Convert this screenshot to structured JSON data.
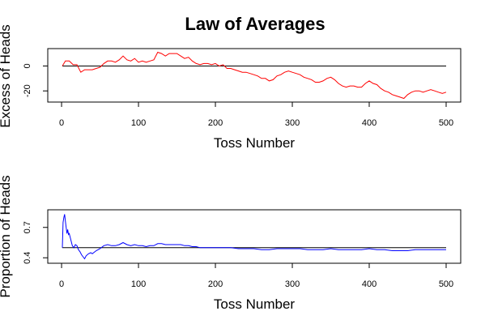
{
  "title": "Law of Averages",
  "chart_data": [
    {
      "type": "line",
      "ylabel": "Excess of Heads",
      "xlabel": "Toss Number",
      "xlim": [
        1,
        500
      ],
      "ylim": [
        -27,
        12
      ],
      "xticks": [
        0,
        100,
        200,
        300,
        400,
        500
      ],
      "yticks": [
        -20,
        0
      ],
      "reference_line": 0,
      "series": [
        {
          "color": "#ff0000",
          "points": [
            [
              1,
              0
            ],
            [
              5,
              4
            ],
            [
              10,
              4
            ],
            [
              15,
              1
            ],
            [
              20,
              1
            ],
            [
              25,
              -5
            ],
            [
              30,
              -3
            ],
            [
              35,
              -3
            ],
            [
              40,
              -3
            ],
            [
              45,
              -2
            ],
            [
              50,
              -1
            ],
            [
              55,
              2
            ],
            [
              60,
              4
            ],
            [
              65,
              4
            ],
            [
              70,
              3
            ],
            [
              75,
              5
            ],
            [
              80,
              8
            ],
            [
              85,
              5
            ],
            [
              90,
              4
            ],
            [
              95,
              6
            ],
            [
              100,
              3
            ],
            [
              105,
              4
            ],
            [
              110,
              3
            ],
            [
              115,
              4
            ],
            [
              120,
              5
            ],
            [
              125,
              11
            ],
            [
              130,
              10
            ],
            [
              135,
              8
            ],
            [
              140,
              10
            ],
            [
              145,
              10
            ],
            [
              150,
              10
            ],
            [
              155,
              8
            ],
            [
              160,
              6
            ],
            [
              165,
              7
            ],
            [
              170,
              4
            ],
            [
              175,
              2
            ],
            [
              180,
              1
            ],
            [
              185,
              2
            ],
            [
              190,
              2
            ],
            [
              195,
              1
            ],
            [
              200,
              2
            ],
            [
              205,
              0
            ],
            [
              210,
              1
            ],
            [
              215,
              -2
            ],
            [
              220,
              -2
            ],
            [
              225,
              -3
            ],
            [
              230,
              -4
            ],
            [
              235,
              -5
            ],
            [
              240,
              -5
            ],
            [
              245,
              -6
            ],
            [
              250,
              -7
            ],
            [
              255,
              -8
            ],
            [
              260,
              -10
            ],
            [
              265,
              -10
            ],
            [
              270,
              -12
            ],
            [
              275,
              -11
            ],
            [
              280,
              -8
            ],
            [
              285,
              -7
            ],
            [
              290,
              -5
            ],
            [
              295,
              -4
            ],
            [
              300,
              -5
            ],
            [
              305,
              -6
            ],
            [
              310,
              -7
            ],
            [
              315,
              -9
            ],
            [
              320,
              -10
            ],
            [
              325,
              -11
            ],
            [
              330,
              -13
            ],
            [
              335,
              -13
            ],
            [
              340,
              -12
            ],
            [
              345,
              -10
            ],
            [
              350,
              -9
            ],
            [
              355,
              -11
            ],
            [
              360,
              -14
            ],
            [
              365,
              -16
            ],
            [
              370,
              -17
            ],
            [
              375,
              -16
            ],
            [
              380,
              -16
            ],
            [
              385,
              -17
            ],
            [
              390,
              -17
            ],
            [
              395,
              -14
            ],
            [
              400,
              -12
            ],
            [
              405,
              -14
            ],
            [
              410,
              -15
            ],
            [
              415,
              -18
            ],
            [
              420,
              -20
            ],
            [
              425,
              -21
            ],
            [
              430,
              -23
            ],
            [
              435,
              -24
            ],
            [
              440,
              -25
            ],
            [
              445,
              -26
            ],
            [
              450,
              -23
            ],
            [
              455,
              -21
            ],
            [
              460,
              -20
            ],
            [
              465,
              -20
            ],
            [
              470,
              -21
            ],
            [
              475,
              -20
            ],
            [
              480,
              -19
            ],
            [
              485,
              -20
            ],
            [
              490,
              -21
            ],
            [
              495,
              -22
            ],
            [
              500,
              -21
            ]
          ]
        }
      ]
    },
    {
      "type": "line",
      "ylabel": "Proportion of Heads",
      "xlabel": "Toss Number",
      "xlim": [
        1,
        500
      ],
      "ylim": [
        0.37,
        0.85
      ],
      "xticks": [
        0,
        100,
        200,
        300,
        400,
        500
      ],
      "yticks": [
        0.4,
        0.7
      ],
      "reference_line": 0.5,
      "series": [
        {
          "color": "#0000ff",
          "points": [
            [
              1,
              0.5
            ],
            [
              2,
              0.75
            ],
            [
              3,
              0.8
            ],
            [
              4,
              0.83
            ],
            [
              5,
              0.76
            ],
            [
              6,
              0.7
            ],
            [
              7,
              0.64
            ],
            [
              8,
              0.68
            ],
            [
              9,
              0.63
            ],
            [
              10,
              0.64
            ],
            [
              12,
              0.58
            ],
            [
              14,
              0.52
            ],
            [
              16,
              0.5
            ],
            [
              18,
              0.53
            ],
            [
              20,
              0.52
            ],
            [
              22,
              0.48
            ],
            [
              24,
              0.46
            ],
            [
              26,
              0.43
            ],
            [
              28,
              0.41
            ],
            [
              30,
              0.39
            ],
            [
              32,
              0.42
            ],
            [
              35,
              0.44
            ],
            [
              38,
              0.45
            ],
            [
              40,
              0.44
            ],
            [
              45,
              0.47
            ],
            [
              50,
              0.49
            ],
            [
              55,
              0.52
            ],
            [
              60,
              0.53
            ],
            [
              65,
              0.52
            ],
            [
              70,
              0.52
            ],
            [
              75,
              0.53
            ],
            [
              80,
              0.55
            ],
            [
              85,
              0.53
            ],
            [
              90,
              0.52
            ],
            [
              95,
              0.53
            ],
            [
              100,
              0.52
            ],
            [
              105,
              0.52
            ],
            [
              110,
              0.51
            ],
            [
              115,
              0.52
            ],
            [
              120,
              0.52
            ],
            [
              125,
              0.54
            ],
            [
              130,
              0.54
            ],
            [
              135,
              0.53
            ],
            [
              140,
              0.53
            ],
            [
              145,
              0.53
            ],
            [
              150,
              0.53
            ],
            [
              155,
              0.53
            ],
            [
              160,
              0.52
            ],
            [
              165,
              0.52
            ],
            [
              170,
              0.51
            ],
            [
              175,
              0.51
            ],
            [
              180,
              0.5
            ],
            [
              190,
              0.5
            ],
            [
              200,
              0.5
            ],
            [
              210,
              0.5
            ],
            [
              220,
              0.5
            ],
            [
              230,
              0.49
            ],
            [
              240,
              0.49
            ],
            [
              250,
              0.49
            ],
            [
              260,
              0.48
            ],
            [
              270,
              0.48
            ],
            [
              280,
              0.49
            ],
            [
              290,
              0.49
            ],
            [
              300,
              0.49
            ],
            [
              310,
              0.49
            ],
            [
              320,
              0.48
            ],
            [
              330,
              0.48
            ],
            [
              340,
              0.48
            ],
            [
              350,
              0.49
            ],
            [
              360,
              0.48
            ],
            [
              370,
              0.48
            ],
            [
              380,
              0.48
            ],
            [
              390,
              0.48
            ],
            [
              400,
              0.49
            ],
            [
              410,
              0.48
            ],
            [
              420,
              0.48
            ],
            [
              430,
              0.47
            ],
            [
              440,
              0.47
            ],
            [
              450,
              0.47
            ],
            [
              460,
              0.48
            ],
            [
              470,
              0.48
            ],
            [
              480,
              0.48
            ],
            [
              490,
              0.48
            ],
            [
              500,
              0.48
            ]
          ]
        }
      ]
    }
  ]
}
